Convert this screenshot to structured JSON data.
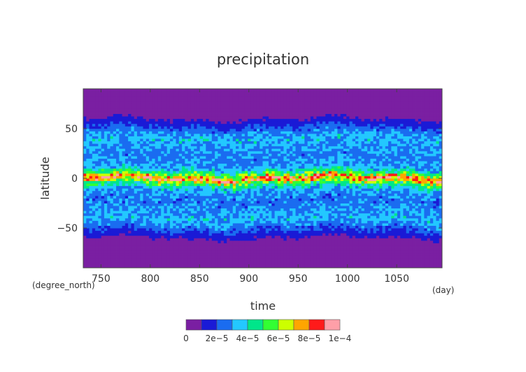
{
  "chart_data": {
    "type": "heatmap",
    "title": "precipitation",
    "xlabel": "time",
    "ylabel": "latitude",
    "x_unit": "(day)",
    "y_unit": "(degree_north)",
    "xlim": [
      732,
      1096
    ],
    "ylim": [
      -90,
      90
    ],
    "x_ticks": [
      750,
      800,
      850,
      900,
      950,
      1000,
      1050
    ],
    "y_ticks": [
      -50,
      0,
      50
    ],
    "y_tick_labels": [
      "−50",
      "0",
      "50"
    ],
    "colorbar": {
      "levels": [
        0,
        1e-05,
        2e-05,
        3e-05,
        4e-05,
        5e-05,
        6e-05,
        7e-05,
        8e-05,
        9e-05,
        0.0001
      ],
      "colors": [
        "#7a1fa2",
        "#1a1ad6",
        "#1a6cf0",
        "#23c8ff",
        "#00e68a",
        "#33ff33",
        "#ccff00",
        "#ffa500",
        "#ff1a1a",
        "#ff9fa8"
      ],
      "tick_labels": [
        "0",
        "2e−5",
        "4e−5",
        "6e−5",
        "8e−5",
        "1e−4"
      ]
    },
    "latitude_profile": [
      {
        "lat": -90,
        "value": 2e-06
      },
      {
        "lat": -70,
        "value": 3e-06
      },
      {
        "lat": -63,
        "value": 6e-06
      },
      {
        "lat": -55,
        "value": 1.6e-05
      },
      {
        "lat": -47,
        "value": 2.7e-05
      },
      {
        "lat": -40,
        "value": 3.3e-05
      },
      {
        "lat": -30,
        "value": 2.8e-05
      },
      {
        "lat": -20,
        "value": 2.5e-05
      },
      {
        "lat": -10,
        "value": 3.3e-05
      },
      {
        "lat": -4,
        "value": 5.5e-05
      },
      {
        "lat": 0,
        "value": 8.8e-05
      },
      {
        "lat": 4,
        "value": 5.8e-05
      },
      {
        "lat": 10,
        "value": 3.3e-05
      },
      {
        "lat": 20,
        "value": 2.6e-05
      },
      {
        "lat": 30,
        "value": 2.9e-05
      },
      {
        "lat": 40,
        "value": 3.4e-05
      },
      {
        "lat": 47,
        "value": 2.7e-05
      },
      {
        "lat": 55,
        "value": 1.6e-05
      },
      {
        "lat": 63,
        "value": 6e-06
      },
      {
        "lat": 70,
        "value": 3e-06
      },
      {
        "lat": 90,
        "value": 2e-06
      }
    ]
  }
}
